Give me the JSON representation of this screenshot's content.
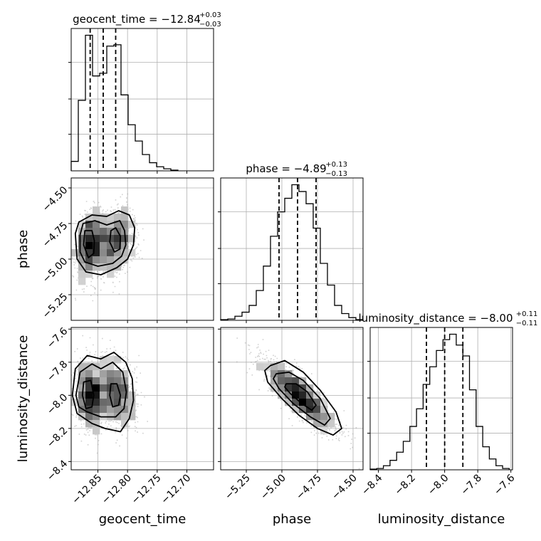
{
  "chart_data": {
    "type": "corner",
    "grid": true,
    "params": [
      {
        "name": "geocent_time",
        "axis_label": "geocent_time",
        "range": [
          -12.895,
          -12.655
        ],
        "ticks": [
          -12.85,
          -12.8,
          -12.75,
          -12.7
        ],
        "tick_labels": [
          "−12.85",
          "−12.80",
          "−12.75",
          "−12.70"
        ],
        "title_main": "geocent_time = −12.84",
        "title_up": "+0.03",
        "title_down": "−0.03",
        "quantiles": [
          -12.863,
          -12.841,
          -12.82
        ],
        "hist_edges": [
          -12.895,
          -12.883,
          -12.871,
          -12.859,
          -12.847,
          -12.835,
          -12.823,
          -12.811,
          -12.799,
          -12.787,
          -12.775,
          -12.763,
          -12.751,
          -12.739,
          -12.727,
          -12.715
        ],
        "hist_counts": [
          7,
          52,
          100,
          70,
          72,
          92,
          93,
          56,
          34,
          22,
          12,
          6,
          3,
          1.5,
          0.5
        ]
      },
      {
        "name": "phase",
        "axis_label": "phase",
        "range": [
          -5.43,
          -4.43
        ],
        "ticks": [
          -5.25,
          -5.0,
          -4.75,
          -4.5
        ],
        "tick_labels": [
          "−5.25",
          "−5.00",
          "−4.75",
          "−4.50"
        ],
        "title_main": "phase = −4.89",
        "title_up": "+0.13",
        "title_down": "−0.13",
        "quantiles": [
          -5.02,
          -4.89,
          -4.76
        ],
        "hist_edges": [
          -5.43,
          -5.38,
          -5.33,
          -5.28,
          -5.23,
          -5.18,
          -5.13,
          -5.08,
          -5.03,
          -4.98,
          -4.93,
          -4.88,
          -4.83,
          -4.78,
          -4.73,
          -4.68,
          -4.63,
          -4.58,
          -4.53,
          -4.48,
          -4.43
        ],
        "hist_counts": [
          0.5,
          1,
          3,
          6,
          11,
          22,
          40,
          62,
          80,
          90,
          100,
          95,
          86,
          68,
          42,
          26,
          11,
          5,
          2,
          0.5
        ]
      },
      {
        "name": "luminosity_distance",
        "axis_label": "luminosity_distance",
        "range": [
          -8.45,
          -7.59
        ],
        "ticks": [
          -8.4,
          -8.2,
          -8.0,
          -7.8,
          -7.6
        ],
        "tick_labels": [
          "−8.4",
          "−8.2",
          "−8.0",
          "−7.8",
          "−7.6"
        ],
        "title_main": "luminosity_distance = −8.00",
        "title_up": "+0.11",
        "title_down": "−0.11",
        "quantiles": [
          -8.11,
          -8.0,
          -7.89
        ],
        "hist_edges": [
          -8.45,
          -8.41,
          -8.37,
          -8.33,
          -8.29,
          -8.25,
          -8.21,
          -8.17,
          -8.13,
          -8.09,
          -8.05,
          -8.01,
          -7.97,
          -7.93,
          -7.89,
          -7.85,
          -7.81,
          -7.77,
          -7.73,
          -7.69,
          -7.65,
          -7.61
        ],
        "hist_counts": [
          0.5,
          1,
          3,
          7,
          13,
          21,
          32,
          45,
          63,
          76,
          88,
          96,
          100,
          92,
          84,
          59,
          32,
          17,
          8,
          3,
          1
        ]
      }
    ],
    "pairs": [
      {
        "x_param": 0,
        "y_param": 1,
        "clusters": [
          {
            "mx": -12.863,
            "my": -4.9,
            "sx": 0.013,
            "sy": 0.12,
            "rho": 0.2
          },
          {
            "mx": -12.82,
            "my": -4.87,
            "sx": 0.018,
            "sy": 0.12,
            "rho": 0.2
          }
        ],
        "contours": [
          [
            [
              -12.888,
              -4.82
            ],
            [
              -12.882,
              -4.74
            ],
            [
              -12.86,
              -4.69
            ],
            [
              -12.835,
              -4.7
            ],
            [
              -12.815,
              -4.66
            ],
            [
              -12.797,
              -4.69
            ],
            [
              -12.788,
              -4.78
            ],
            [
              -12.79,
              -4.9
            ],
            [
              -12.8,
              -5.0
            ],
            [
              -12.818,
              -5.06
            ],
            [
              -12.845,
              -5.11
            ],
            [
              -12.87,
              -5.09
            ],
            [
              -12.885,
              -5.0
            ]
          ],
          [
            [
              -12.88,
              -4.83
            ],
            [
              -12.875,
              -4.75
            ],
            [
              -12.855,
              -4.73
            ],
            [
              -12.835,
              -4.76
            ],
            [
              -12.813,
              -4.73
            ],
            [
              -12.805,
              -4.8
            ],
            [
              -12.803,
              -4.9
            ],
            [
              -12.81,
              -4.98
            ],
            [
              -12.825,
              -5.03
            ],
            [
              -12.85,
              -5.05
            ],
            [
              -12.872,
              -5.02
            ],
            [
              -12.88,
              -4.95
            ]
          ],
          [
            [
              -12.872,
              -4.8
            ],
            [
              -12.86,
              -4.8
            ],
            [
              -12.856,
              -4.87
            ],
            [
              -12.857,
              -4.96
            ],
            [
              -12.866,
              -4.99
            ],
            [
              -12.874,
              -4.9
            ]
          ],
          [
            [
              -12.828,
              -4.8
            ],
            [
              -12.82,
              -4.78
            ],
            [
              -12.812,
              -4.84
            ],
            [
              -12.813,
              -4.93
            ],
            [
              -12.822,
              -4.95
            ],
            [
              -12.83,
              -4.88
            ]
          ]
        ]
      },
      {
        "x_param": 0,
        "y_param": 2,
        "clusters": [
          {
            "mx": -12.863,
            "my": -8.0,
            "sx": 0.013,
            "sy": 0.11,
            "rho": -0.2
          },
          {
            "mx": -12.82,
            "my": -7.99,
            "sx": 0.018,
            "sy": 0.11,
            "rho": -0.2
          }
        ],
        "contours": [
          [
            [
              -12.893,
              -8.0
            ],
            [
              -12.888,
              -7.84
            ],
            [
              -12.868,
              -7.76
            ],
            [
              -12.845,
              -7.78
            ],
            [
              -12.823,
              -7.74
            ],
            [
              -12.803,
              -7.8
            ],
            [
              -12.792,
              -7.9
            ],
            [
              -12.79,
              -8.03
            ],
            [
              -12.797,
              -8.14
            ],
            [
              -12.812,
              -8.22
            ],
            [
              -12.838,
              -8.2
            ],
            [
              -12.86,
              -8.17
            ],
            [
              -12.885,
              -8.11
            ]
          ],
          [
            [
              -12.887,
              -8.0
            ],
            [
              -12.88,
              -7.86
            ],
            [
              -12.86,
              -7.81
            ],
            [
              -12.845,
              -7.84
            ],
            [
              -12.825,
              -7.8
            ],
            [
              -12.808,
              -7.86
            ],
            [
              -12.802,
              -7.98
            ],
            [
              -12.806,
              -8.08
            ],
            [
              -12.82,
              -8.13
            ],
            [
              -12.845,
              -8.13
            ],
            [
              -12.868,
              -8.1
            ],
            [
              -12.882,
              -8.07
            ]
          ],
          [
            [
              -12.874,
              -7.92
            ],
            [
              -12.862,
              -7.91
            ],
            [
              -12.857,
              -8.0
            ],
            [
              -12.86,
              -8.07
            ],
            [
              -12.87,
              -8.08
            ],
            [
              -12.876,
              -8.0
            ]
          ],
          [
            [
              -12.828,
              -7.93
            ],
            [
              -12.818,
              -7.93
            ],
            [
              -12.812,
              -8.0
            ],
            [
              -12.815,
              -8.06
            ],
            [
              -12.825,
              -8.07
            ],
            [
              -12.83,
              -8.0
            ]
          ]
        ]
      },
      {
        "x_param": 1,
        "y_param": 2,
        "clusters": [
          {
            "mx": -4.88,
            "my": -8.0,
            "sx": 0.13,
            "sy": 0.11,
            "rho": -0.85
          }
        ],
        "contours": [
          [
            [
              -5.08,
              -7.82
            ],
            [
              -4.98,
              -7.79
            ],
            [
              -4.85,
              -7.86
            ],
            [
              -4.73,
              -7.97
            ],
            [
              -4.62,
              -8.1
            ],
            [
              -4.58,
              -8.2
            ],
            [
              -4.64,
              -8.24
            ],
            [
              -4.75,
              -8.2
            ],
            [
              -4.88,
              -8.12
            ],
            [
              -5.0,
              -8.02
            ],
            [
              -5.1,
              -7.92
            ],
            [
              -5.12,
              -7.85
            ]
          ],
          [
            [
              -5.04,
              -7.87
            ],
            [
              -4.95,
              -7.86
            ],
            [
              -4.85,
              -7.91
            ],
            [
              -4.73,
              -8.02
            ],
            [
              -4.66,
              -8.14
            ],
            [
              -4.7,
              -8.18
            ],
            [
              -4.8,
              -8.13
            ],
            [
              -4.92,
              -8.05
            ],
            [
              -5.02,
              -7.96
            ],
            [
              -5.06,
              -7.9
            ]
          ],
          [
            [
              -4.97,
              -7.93
            ],
            [
              -4.9,
              -7.93
            ],
            [
              -4.82,
              -7.98
            ],
            [
              -4.76,
              -8.06
            ],
            [
              -4.79,
              -8.09
            ],
            [
              -4.86,
              -8.05
            ],
            [
              -4.94,
              -7.99
            ],
            [
              -4.98,
              -7.95
            ]
          ]
        ]
      }
    ]
  }
}
